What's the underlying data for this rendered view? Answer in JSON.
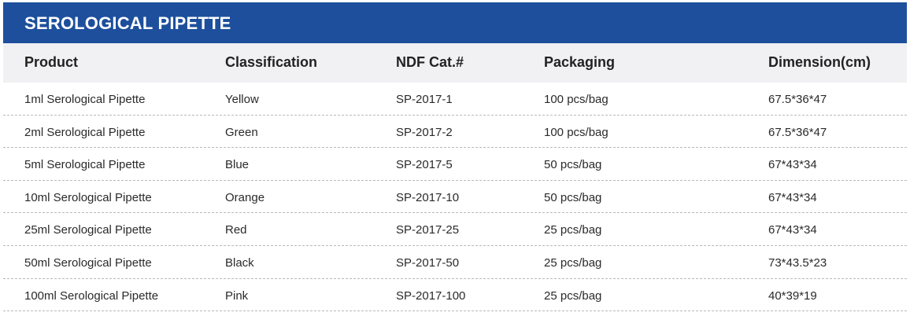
{
  "title": "SEROLOGICAL PIPETTE",
  "colors": {
    "banner": "#1d4f9c",
    "header_bg": "#f1f1f3",
    "divider": "#b9b9b9"
  },
  "columns": [
    "Product",
    "Classification",
    "NDF Cat.#",
    "Packaging",
    "Dimension(cm)"
  ],
  "rows": [
    [
      "1ml Serological Pipette",
      "Yellow",
      "SP-2017-1",
      "100 pcs/bag",
      "67.5*36*47"
    ],
    [
      "2ml Serological Pipette",
      "Green",
      "SP-2017-2",
      "100 pcs/bag",
      "67.5*36*47"
    ],
    [
      "5ml Serological Pipette",
      "Blue",
      "SP-2017-5",
      "50 pcs/bag",
      "67*43*34"
    ],
    [
      "10ml Serological Pipette",
      "Orange",
      "SP-2017-10",
      "50 pcs/bag",
      "67*43*34"
    ],
    [
      "25ml Serological Pipette",
      "Red",
      "SP-2017-25",
      "25 pcs/bag",
      "67*43*34"
    ],
    [
      "50ml Serological Pipette",
      "Black",
      "SP-2017-50",
      "25 pcs/bag",
      "73*43.5*23"
    ],
    [
      "100ml Serological Pipette",
      "Pink",
      "SP-2017-100",
      "25 pcs/bag",
      "40*39*19"
    ]
  ]
}
